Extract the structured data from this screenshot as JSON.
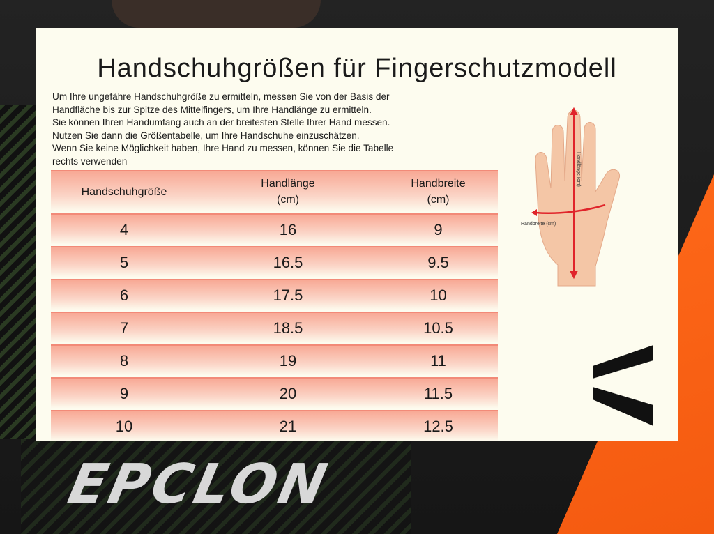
{
  "title": "Handschuhgrößen für Fingerschutzmodell",
  "intro": [
    "Um Ihre ungefähre Handschuhgröße zu ermitteln, messen Sie von der Basis der",
    "Handfläche bis zur Spitze des Mittelfingers, um Ihre Handlänge zu ermitteln.",
    "Sie können Ihren Handumfang auch an der breitesten Stelle Ihrer Hand messen.",
    "Nutzen Sie dann die Größentabelle, um Ihre Handschuhe einzuschätzen.",
    "Wenn Sie keine Möglichkeit haben, Ihre Hand zu messen, können Sie die Tabelle",
    "rechts verwenden"
  ],
  "table": {
    "headers": [
      {
        "l1": "Handschuhgröße",
        "l2": ""
      },
      {
        "l1": "Handlänge",
        "l2": "(cm)"
      },
      {
        "l1": "Handbreite",
        "l2": "(cm)"
      }
    ],
    "rows": [
      [
        "4",
        "16",
        "9"
      ],
      [
        "5",
        "16.5",
        "9.5"
      ],
      [
        "6",
        "17.5",
        "10"
      ],
      [
        "7",
        "18.5",
        "10.5"
      ],
      [
        "8",
        "19",
        "11"
      ],
      [
        "9",
        "20",
        "11.5"
      ],
      [
        "10",
        "21",
        "12.5"
      ]
    ]
  },
  "hand_diagram": {
    "length_label": "Handlänge (cm)",
    "width_label": "Handbreite (cm)"
  },
  "brand": "EPCLON",
  "colors": {
    "card": "#fdfcef",
    "row_top": "#f8a995",
    "arrow": "#e0242a",
    "accent": "#f45a10"
  }
}
